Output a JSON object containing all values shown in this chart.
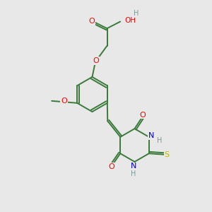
{
  "bg_color": "#e8e8e8",
  "bond_color": "#3a7a3a",
  "atom_colors": {
    "O": "#ff0000",
    "N": "#0000cc",
    "S": "#bbbb00",
    "H": "#7a9a9a",
    "C": "#3a7a3a"
  },
  "figsize": [
    3.0,
    3.0
  ],
  "dpi": 100,
  "lw": 1.4
}
